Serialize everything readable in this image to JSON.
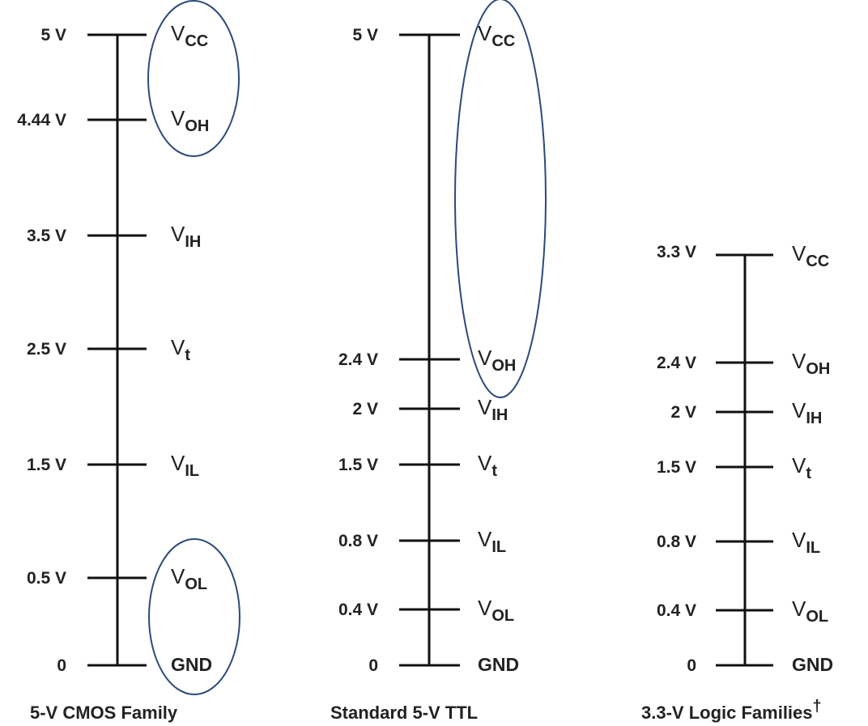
{
  "families": [
    {
      "caption": "5-V CMOS Family",
      "levels": [
        {
          "value": "5 V",
          "signal": "V",
          "sub": "CC"
        },
        {
          "value": "4.44 V",
          "signal": "V",
          "sub": "OH"
        },
        {
          "value": "3.5 V",
          "signal": "V",
          "sub": "IH"
        },
        {
          "value": "2.5 V",
          "signal": "V",
          "sub": "t"
        },
        {
          "value": "1.5 V",
          "signal": "V",
          "sub": "IL"
        },
        {
          "value": "0.5 V",
          "signal": "V",
          "sub": "OL"
        },
        {
          "value": "0",
          "signal": "GND",
          "sub": ""
        }
      ]
    },
    {
      "caption": "Standard 5-V TTL",
      "levels": [
        {
          "value": "5 V",
          "signal": "V",
          "sub": "CC"
        },
        {
          "value": "2.4 V",
          "signal": "V",
          "sub": "OH"
        },
        {
          "value": "2 V",
          "signal": "V",
          "sub": "IH"
        },
        {
          "value": "1.5 V",
          "signal": "V",
          "sub": "t"
        },
        {
          "value": "0.8 V",
          "signal": "V",
          "sub": "IL"
        },
        {
          "value": "0.4 V",
          "signal": "V",
          "sub": "OL"
        },
        {
          "value": "0",
          "signal": "GND",
          "sub": ""
        }
      ]
    },
    {
      "caption": "3.3-V Logic Families",
      "caption_mark": "†",
      "levels": [
        {
          "value": "3.3 V",
          "signal": "V",
          "sub": "CC"
        },
        {
          "value": "2.4 V",
          "signal": "V",
          "sub": "OH"
        },
        {
          "value": "2 V",
          "signal": "V",
          "sub": "IH"
        },
        {
          "value": "1.5 V",
          "signal": "V",
          "sub": "t"
        },
        {
          "value": "0.8 V",
          "signal": "V",
          "sub": "IL"
        },
        {
          "value": "0.4 V",
          "signal": "V",
          "sub": "OL"
        },
        {
          "value": "0",
          "signal": "GND",
          "sub": ""
        }
      ]
    }
  ],
  "colors": {
    "ink": "#111111",
    "highlight": "#2b4a7a"
  }
}
